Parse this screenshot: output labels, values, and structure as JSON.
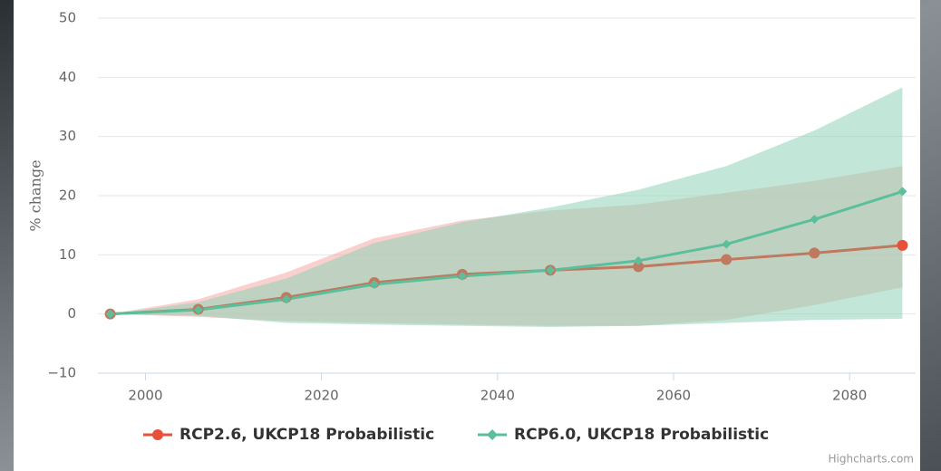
{
  "chart_data": {
    "type": "line-range",
    "y_axis_label": "% change",
    "credit": "Highcharts.com",
    "xlim": [
      1994.6,
      2087.5
    ],
    "xticks": [
      2000,
      2020,
      2040,
      2060,
      2080
    ],
    "ylim": [
      -10,
      50
    ],
    "yticks": [
      {
        "value": -10,
        "label": "−10"
      },
      0,
      10,
      20,
      30,
      40,
      50
    ],
    "grid": true,
    "legend": "bottom",
    "x": [
      1996,
      2006,
      2016,
      2026,
      2036,
      2046,
      2056,
      2066,
      2076,
      2086
    ],
    "series": [
      {
        "name": "RCP2.6, UKCP18 Probabilistic",
        "color": "#e8503a",
        "line_color": "#c0785f",
        "range_color": "#f4a9a4",
        "values": [
          0,
          0.8,
          2.8,
          5.3,
          6.7,
          7.4,
          8.0,
          9.2,
          10.3,
          11.6
        ],
        "low": [
          0,
          -0.5,
          -1.2,
          -1.5,
          -1.8,
          -2.0,
          -2.0,
          -1.0,
          1.5,
          4.5
        ],
        "high": [
          0,
          2.5,
          7.0,
          12.8,
          15.8,
          17.5,
          18.5,
          20.5,
          22.5,
          25.0
        ]
      },
      {
        "name": "RCP6.0, UKCP18 Probabilistic",
        "color": "#5cbf9c",
        "line_color": "#5cbf9c",
        "range_color": "#8fd3b8",
        "values": [
          0,
          0.7,
          2.5,
          5.0,
          6.4,
          7.4,
          9.0,
          11.8,
          16.0,
          20.7
        ],
        "low": [
          0,
          -0.3,
          -1.5,
          -1.8,
          -2.0,
          -2.2,
          -2.0,
          -1.5,
          -1.0,
          -0.8
        ],
        "high": [
          0,
          2.0,
          6.0,
          12.0,
          15.5,
          18.0,
          21.0,
          25.0,
          31.0,
          38.3
        ]
      }
    ]
  }
}
